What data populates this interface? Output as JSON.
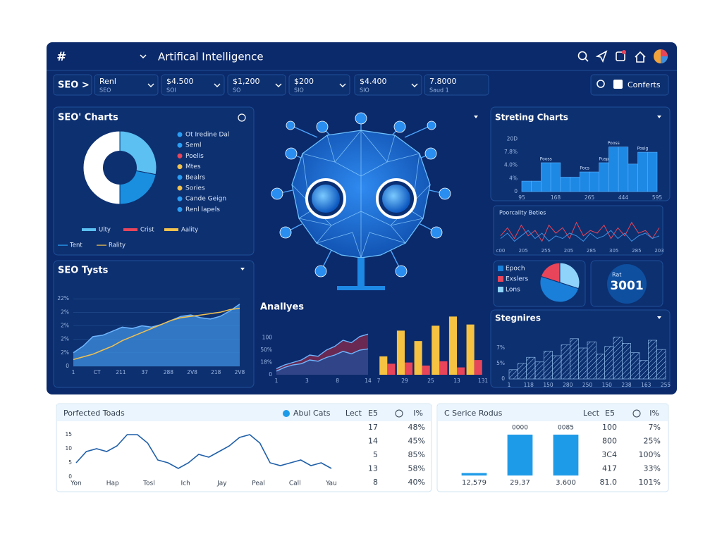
{
  "header": {
    "logo": "#",
    "title": "Artifical Intelligence"
  },
  "filters": {
    "tab": "SEO >",
    "items": [
      {
        "top": "Renl",
        "bottom": "SEO"
      },
      {
        "top": "$4.500",
        "bottom": "SOI"
      },
      {
        "top": "$1,200",
        "bottom": "SO"
      },
      {
        "top": "$200",
        "bottom": "SIO"
      },
      {
        "top": "$4.400",
        "bottom": "SIO"
      },
      {
        "top": "7.8000",
        "bottom": "Saud 1"
      }
    ],
    "search": "Conferts"
  },
  "seo_charts": {
    "title": "SEO' Charts",
    "donut": {
      "type": "pie",
      "values": [
        28,
        22,
        50
      ],
      "colors": [
        "#5cc0f2",
        "#1a8fe0",
        "#ffffff"
      ]
    },
    "legend": [
      {
        "name": "Ot Iredine Dal",
        "color": "#2a9df4"
      },
      {
        "name": "Seml",
        "color": "#2a9df4"
      },
      {
        "name": "Poelis",
        "color": "#e8455a"
      },
      {
        "name": "Mtes",
        "color": "#f2c14e"
      },
      {
        "name": "Bealrs",
        "color": "#2a9df4"
      },
      {
        "name": "Sories",
        "color": "#f2c14e"
      },
      {
        "name": "Cande Geign",
        "color": "#2a9df4"
      },
      {
        "name": "Renl lapels",
        "color": "#2a9df4"
      }
    ],
    "legend2": [
      {
        "name": "Ulty",
        "color": "#5cc0f2"
      },
      {
        "name": "Crist",
        "color": "#e8455a"
      },
      {
        "name": "Aality",
        "color": "#f2c14e"
      },
      {
        "name": "Tent",
        "color": "#2a9df4"
      },
      {
        "name": "Rality",
        "color": "#f2c14e"
      }
    ]
  },
  "seo_tysts": {
    "title": "SEO Tysts",
    "type": "line",
    "grid": true,
    "ylim": [
      0,
      6
    ],
    "yticks": [
      0,
      {
        "value": 1,
        "label": "2%"
      },
      {
        "value": 2,
        "label": "2%"
      },
      {
        "value": 3,
        "label": "2%"
      },
      {
        "value": 4,
        "label": "2%"
      },
      {
        "value": 5,
        "label": "22%"
      }
    ],
    "x_labels": [
      "1",
      "CT",
      "211",
      "37",
      "288",
      "2V8",
      "218",
      "2V8"
    ],
    "series": [
      {
        "color": "#3d8fe0",
        "area": true,
        "values": [
          1,
          1.5,
          2.2,
          2.3,
          2.6,
          2.9,
          2.8,
          3.0,
          2.9,
          3.1,
          3.4,
          3.7,
          3.8,
          3.6,
          3.5,
          3.7,
          4.1,
          4.6
        ]
      },
      {
        "color": "#f2c14e",
        "area": false,
        "values": [
          0.5,
          0.7,
          0.9,
          1.2,
          1.5,
          1.9,
          2.2,
          2.5,
          2.8,
          3.1,
          3.4,
          3.6,
          3.7,
          3.8,
          3.9,
          4.0,
          4.2,
          4.3
        ]
      }
    ]
  },
  "analytics": {
    "title": "Anallyes",
    "area": {
      "type": "line",
      "grid": false,
      "ylim": [
        0,
        4
      ],
      "yticks": [
        0,
        {
          "value": 1,
          "label": "18%"
        },
        {
          "value": 2,
          "label": "50%"
        },
        {
          "value": 3,
          "label": "100"
        }
      ],
      "x_labels": [
        "1",
        "3",
        "8",
        "14"
      ],
      "series": [
        {
          "color": "#8a2a4a",
          "area": true,
          "values": [
            0.5,
            0.8,
            1.0,
            1.2,
            1.6,
            1.5,
            2.0,
            2.3,
            2.8,
            2.6,
            3.1,
            3.3
          ]
        },
        {
          "color": "#1d4d9a",
          "area": true,
          "values": [
            0.3,
            0.6,
            0.8,
            0.9,
            1.2,
            1.1,
            1.4,
            1.6,
            1.9,
            1.7,
            2.0,
            2.1
          ]
        }
      ]
    },
    "bars": {
      "type": "bar",
      "ylim": [
        0,
        100
      ],
      "x_labels": [
        "7",
        "29",
        "25",
        "13",
        "131"
      ],
      "series": [
        {
          "color": "#f5c242",
          "values": [
            30,
            72,
            55,
            80,
            95,
            82
          ]
        },
        {
          "color": "#e8455a",
          "values": [
            18,
            20,
            15,
            22,
            12,
            24
          ]
        }
      ]
    }
  },
  "streting": {
    "title": "Streting Charts",
    "type": "bar",
    "grid": false,
    "ylim": [
      0,
      4.4
    ],
    "yticks": [
      0,
      {
        "value": 1,
        "label": "4%"
      },
      {
        "value": 2,
        "label": "4.0%"
      },
      {
        "value": 3,
        "label": "7.8%"
      },
      {
        "value": 4,
        "label": "20D"
      }
    ],
    "x_labels": [
      "95",
      "168",
      "265",
      "444",
      "595"
    ],
    "series": [
      {
        "color": "#1e88e5",
        "values": [
          0.8,
          0.8,
          2.2,
          2.2,
          1.1,
          1.1,
          1.5,
          1.5,
          2.2,
          3.4,
          3.4,
          2.1,
          3.0,
          3.0
        ]
      }
    ],
    "annotations": [
      "Pooss",
      "Pocs",
      "Pusp",
      "Pooss",
      "Posig"
    ]
  },
  "proportionality": {
    "title": "Poorcallty Beties",
    "type": "line",
    "grid": false,
    "ylim": [
      0,
      10
    ],
    "x_labels": [
      "c00",
      "205",
      "255",
      "205",
      "285",
      "305",
      "285",
      "203"
    ],
    "series": [
      {
        "color": "#e8455a",
        "area": false,
        "values": [
          4,
          7,
          3,
          8,
          4,
          6,
          2,
          8,
          5,
          7,
          3,
          9,
          4,
          6,
          5,
          8,
          3,
          7,
          4,
          9,
          5,
          6,
          3,
          7
        ]
      },
      {
        "color": "#3d8fe0",
        "area": false,
        "values": [
          3,
          5,
          2,
          4,
          6,
          3,
          5,
          2,
          4,
          3,
          5,
          4,
          2,
          5,
          3,
          4,
          6,
          3,
          5,
          2,
          4,
          5,
          3,
          4
        ]
      }
    ]
  },
  "epoch_pie": {
    "type": "pie",
    "labels": [
      "Epoch",
      "Exslers",
      "Lons"
    ],
    "values": [
      50,
      20,
      30
    ],
    "colors": [
      "#1a7fd8",
      "#e8455a",
      "#8fd3fb"
    ]
  },
  "kpi": {
    "label": "Rat",
    "value": "3001"
  },
  "stegnires": {
    "title": "Stegnires",
    "type": "bar",
    "grid": false,
    "ylim": [
      0,
      3
    ],
    "yticks": [
      0,
      {
        "value": 1,
        "label": "5%"
      },
      {
        "value": 2,
        "label": "7%"
      }
    ],
    "x_labels": [
      "1",
      "118",
      "150",
      "280",
      "250",
      "150",
      "238",
      "163",
      "255"
    ],
    "series": [
      {
        "color": "#9cc8f5",
        "hatched": true,
        "values": [
          0.6,
          1.0,
          1.4,
          1.1,
          1.8,
          1.5,
          2.2,
          2.6,
          2.0,
          2.4,
          1.6,
          2.1,
          2.7,
          2.3,
          1.7,
          1.2,
          2.5,
          1.9
        ]
      }
    ]
  },
  "trends_card": {
    "title": "Porfected Toads",
    "legend": "Abul Cats",
    "columns": [
      "Lect",
      "E5",
      "I%"
    ],
    "rows": [
      [
        "17",
        "48%"
      ],
      [
        "14",
        "45%"
      ],
      [
        "5",
        "85%"
      ],
      [
        "13",
        "58%"
      ],
      [
        "8",
        "40%"
      ]
    ],
    "chart": {
      "type": "line",
      "grid": false,
      "ylim": [
        0,
        15
      ],
      "yticks": [
        0,
        5,
        10,
        15
      ],
      "x_labels": [
        "Yon",
        "Hap",
        "Tosl",
        "Ich",
        "Jay",
        "Peal",
        "Call",
        "Yau"
      ],
      "series": [
        {
          "color": "#1f5fa8",
          "area": false,
          "values": [
            5,
            9,
            10,
            9,
            11,
            15,
            15,
            12,
            6,
            5,
            3,
            5,
            8,
            7,
            9,
            11,
            14,
            15,
            12,
            5,
            4,
            5,
            6,
            4,
            5,
            3
          ]
        }
      ]
    }
  },
  "service_card": {
    "title": "C Serice Rodus",
    "columns": [
      "Lect",
      "E5",
      "I%"
    ],
    "rows": [
      [
        "100",
        "7%"
      ],
      [
        "800",
        "25%"
      ],
      [
        "3C4",
        "100%"
      ],
      [
        "417",
        "33%"
      ],
      [
        "81.0",
        "101%"
      ]
    ],
    "chart": {
      "type": "bar",
      "ylim": [
        0,
        100
      ],
      "top_labels": [
        null,
        "0000",
        "0085"
      ],
      "x_labels": [
        "12,579",
        "29,37",
        "3.600"
      ],
      "series": [
        {
          "color": "#1e9be8",
          "values": [
            6,
            100,
            100
          ]
        }
      ]
    }
  }
}
